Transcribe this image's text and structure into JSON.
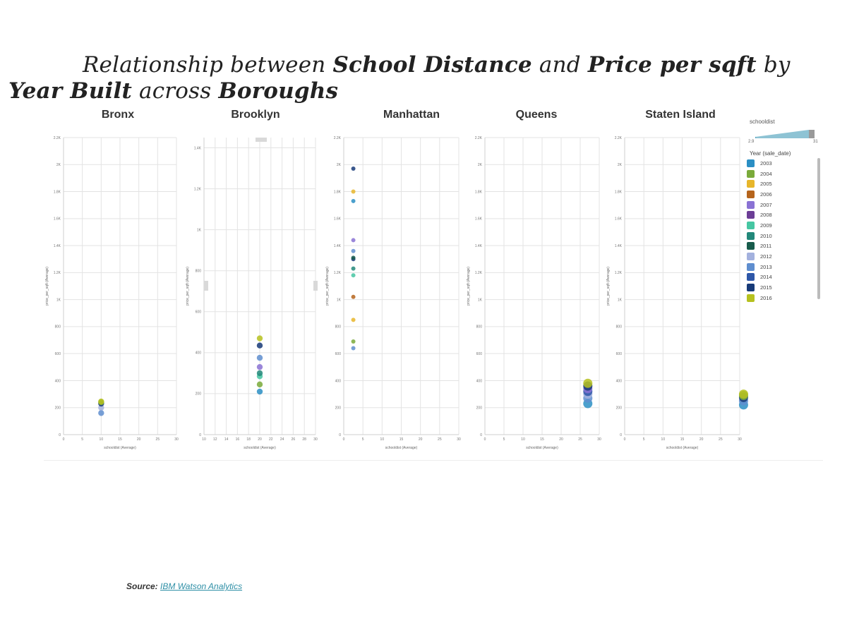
{
  "title": {
    "parts": [
      "Relationship between ",
      "School Distance",
      " and ",
      "Price per sqft",
      " by ",
      "Year Built",
      " across ",
      "Boroughs"
    ]
  },
  "source": {
    "label": "Source:",
    "link_text": "IBM Watson Analytics"
  },
  "legend": {
    "size_title": "schooldist",
    "size_min": "2.9",
    "size_max": "31",
    "color_title": "Year (sale_date)",
    "items": [
      {
        "label": "2003",
        "color": "#2b8fc4"
      },
      {
        "label": "2004",
        "color": "#7aaa3a"
      },
      {
        "label": "2005",
        "color": "#e7b62b"
      },
      {
        "label": "2006",
        "color": "#b5641c"
      },
      {
        "label": "2007",
        "color": "#8a72d4"
      },
      {
        "label": "2008",
        "color": "#6c3e96"
      },
      {
        "label": "2009",
        "color": "#46c6a2"
      },
      {
        "label": "2010",
        "color": "#23887a"
      },
      {
        "label": "2011",
        "color": "#185c4c"
      },
      {
        "label": "2012",
        "color": "#a3b1de"
      },
      {
        "label": "2013",
        "color": "#5f8ecf"
      },
      {
        "label": "2014",
        "color": "#2e57a8"
      },
      {
        "label": "2015",
        "color": "#173a78"
      },
      {
        "label": "2016",
        "color": "#b6c11f"
      }
    ]
  },
  "chart_data": [
    {
      "type": "scatter",
      "title": "Bronx",
      "xlabel": "schooldist (Average)",
      "ylabel": "price_per_sqft (Average)",
      "xlim": [
        0,
        30
      ],
      "ylim": [
        0,
        2200
      ],
      "x_ticks": [
        "0",
        "5",
        "10",
        "15",
        "20",
        "25",
        "30"
      ],
      "y_ticks": [
        "0",
        "200",
        "400",
        "600",
        "800",
        "1K",
        "1.2K",
        "1.4K",
        "1.6K",
        "1.8K",
        "2K",
        "2.2K"
      ],
      "points": [
        {
          "x": 10,
          "y": 160,
          "year": "2013"
        },
        {
          "x": 10,
          "y": 200,
          "year": "2012"
        },
        {
          "x": 10,
          "y": 230,
          "year": "2015"
        },
        {
          "x": 10,
          "y": 240,
          "year": "2004"
        },
        {
          "x": 10,
          "y": 245,
          "year": "2016"
        }
      ]
    },
    {
      "type": "scatter",
      "title": "Brooklyn",
      "xlabel": "schooldist (Average)",
      "ylabel": "price_per_sqft (Average)",
      "xlim": [
        10,
        30
      ],
      "ylim": [
        0,
        1450
      ],
      "x_ticks": [
        "10",
        "12",
        "14",
        "16",
        "18",
        "20",
        "22",
        "24",
        "26",
        "28",
        "30"
      ],
      "y_ticks": [
        "0",
        "200",
        "400",
        "600",
        "800",
        "1K",
        "1.2K",
        "1.4K"
      ],
      "points": [
        {
          "x": 20,
          "y": 210,
          "year": "2003"
        },
        {
          "x": 20,
          "y": 245,
          "year": "2004"
        },
        {
          "x": 20,
          "y": 285,
          "year": "2009"
        },
        {
          "x": 20,
          "y": 300,
          "year": "2010"
        },
        {
          "x": 20,
          "y": 330,
          "year": "2007"
        },
        {
          "x": 20,
          "y": 375,
          "year": "2013"
        },
        {
          "x": 20,
          "y": 435,
          "year": "2015"
        },
        {
          "x": 20,
          "y": 470,
          "year": "2016"
        }
      ]
    },
    {
      "type": "scatter",
      "title": "Manhattan",
      "xlabel": "schooldist (Average)",
      "ylabel": "price_per_sqft (Average)",
      "xlim": [
        0,
        30
      ],
      "ylim": [
        0,
        2200
      ],
      "x_ticks": [
        "0",
        "5",
        "10",
        "15",
        "20",
        "25",
        "30"
      ],
      "y_ticks": [
        "0",
        "200",
        "400",
        "600",
        "800",
        "1K",
        "1.2K",
        "1.4K",
        "1.6K",
        "1.8K",
        "2K",
        "2.2K"
      ],
      "points": [
        {
          "x": 2.5,
          "y": 640,
          "year": "2013"
        },
        {
          "x": 2.5,
          "y": 690,
          "year": "2004"
        },
        {
          "x": 2.5,
          "y": 850,
          "year": "2005"
        },
        {
          "x": 2.5,
          "y": 1020,
          "year": "2006"
        },
        {
          "x": 2.5,
          "y": 1180,
          "year": "2009"
        },
        {
          "x": 2.5,
          "y": 1230,
          "year": "2010"
        },
        {
          "x": 2.5,
          "y": 1300,
          "year": "2015"
        },
        {
          "x": 2.5,
          "y": 1310,
          "year": "2011"
        },
        {
          "x": 2.5,
          "y": 1360,
          "year": "2013"
        },
        {
          "x": 2.5,
          "y": 1440,
          "year": "2007"
        },
        {
          "x": 2.5,
          "y": 1730,
          "year": "2003"
        },
        {
          "x": 2.5,
          "y": 1800,
          "year": "2005"
        },
        {
          "x": 2.5,
          "y": 1970,
          "year": "2015"
        }
      ]
    },
    {
      "type": "scatter",
      "title": "Queens",
      "xlabel": "schooldist (Average)",
      "ylabel": "price_per_sqft (Average)",
      "xlim": [
        0,
        30
      ],
      "ylim": [
        0,
        2200
      ],
      "x_ticks": [
        "0",
        "5",
        "10",
        "15",
        "20",
        "25",
        "30"
      ],
      "y_ticks": [
        "0",
        "200",
        "400",
        "600",
        "800",
        "1K",
        "1.2K",
        "1.4K",
        "1.6K",
        "1.8K",
        "2K",
        "2.2K"
      ],
      "points": [
        {
          "x": 27,
          "y": 230,
          "year": "2003"
        },
        {
          "x": 27,
          "y": 270,
          "year": "2013"
        },
        {
          "x": 27,
          "y": 300,
          "year": "2012"
        },
        {
          "x": 27,
          "y": 320,
          "year": "2014"
        },
        {
          "x": 27,
          "y": 340,
          "year": "2007"
        },
        {
          "x": 27,
          "y": 360,
          "year": "2015"
        },
        {
          "x": 27,
          "y": 380,
          "year": "2016"
        }
      ]
    },
    {
      "type": "scatter",
      "title": "Staten Island",
      "xlabel": "schooldist (Average)",
      "ylabel": "price_per_sqft (Average)",
      "xlim": [
        0,
        30
      ],
      "ylim": [
        0,
        2200
      ],
      "x_ticks": [
        "0",
        "5",
        "10",
        "15",
        "20",
        "25",
        "30"
      ],
      "y_ticks": [
        "0",
        "200",
        "400",
        "600",
        "800",
        "1K",
        "1.2K",
        "1.4K",
        "1.6K",
        "1.8K",
        "2K",
        "2.2K"
      ],
      "points": [
        {
          "x": 31,
          "y": 220,
          "year": "2003"
        },
        {
          "x": 31,
          "y": 250,
          "year": "2013"
        },
        {
          "x": 31,
          "y": 275,
          "year": "2015"
        },
        {
          "x": 31,
          "y": 290,
          "year": "2004"
        },
        {
          "x": 31,
          "y": 300,
          "year": "2016"
        }
      ]
    }
  ]
}
